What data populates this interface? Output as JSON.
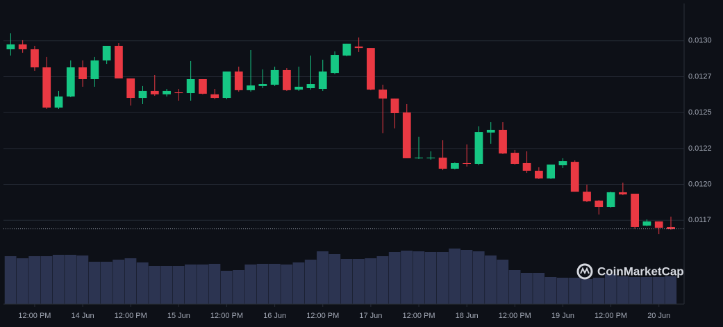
{
  "chart_data": {
    "type": "candlestick",
    "watermark": "CoinMarketCap",
    "x": [
      -18,
      -15,
      -12,
      -9,
      -6,
      -3,
      0,
      3,
      6,
      9,
      12,
      15,
      18,
      21,
      24,
      27,
      30,
      33,
      36,
      39,
      42,
      45,
      48,
      51,
      54,
      57,
      60,
      63,
      66,
      69,
      72,
      75,
      78,
      81,
      84,
      87,
      90,
      93,
      96,
      99,
      102,
      105,
      108,
      111,
      114,
      117,
      120,
      123,
      126,
      129,
      132,
      135,
      138,
      141,
      144,
      147
    ],
    "open": [
      0.012941,
      0.012975,
      0.012941,
      0.012815,
      0.012535,
      0.012612,
      0.012815,
      0.012733,
      0.012863,
      0.012965,
      0.012738,
      0.012602,
      0.012651,
      0.012627,
      0.012641,
      0.012636,
      0.012733,
      0.012627,
      0.012602,
      0.012786,
      0.012656,
      0.012685,
      0.012694,
      0.012796,
      0.01266,
      0.01267,
      0.012665,
      0.012776,
      0.012897,
      0.01296,
      0.01295,
      0.01266,
      0.012598,
      0.012501,
      0.012182,
      0.012182,
      0.012186,
      0.012109,
      0.012148,
      0.012143,
      0.012361,
      0.01238,
      0.01222,
      0.012148,
      0.012095,
      0.012041,
      0.012133,
      0.012157,
      0.011949,
      0.011887,
      0.011843,
      0.011945,
      0.011935,
      0.011713,
      0.011742,
      0.011703
    ],
    "high": [
      0.013052,
      0.013004,
      0.012965,
      0.012888,
      0.012651,
      0.012863,
      0.012863,
      0.012888,
      0.012965,
      0.012984,
      0.012738,
      0.012685,
      0.012762,
      0.012665,
      0.012665,
      0.012859,
      0.012733,
      0.012665,
      0.012786,
      0.01282,
      0.012936,
      0.012801,
      0.01282,
      0.01281,
      0.01282,
      0.012897,
      0.012868,
      0.012926,
      0.01298,
      0.013023,
      0.01295,
      0.012694,
      0.012598,
      0.012559,
      0.012332,
      0.01223,
      0.012307,
      0.012153,
      0.012278,
      0.012404,
      0.012433,
      0.012433,
      0.01224,
      0.01223,
      0.012119,
      0.012138,
      0.012182,
      0.012167,
      0.011998,
      0.011891,
      0.011949,
      0.012012,
      0.011935,
      0.011756,
      0.011742,
      0.011775
    ],
    "low": [
      0.012897,
      0.012917,
      0.012791,
      0.012525,
      0.012525,
      0.012607,
      0.01268,
      0.01268,
      0.012839,
      0.012738,
      0.012549,
      0.012559,
      0.012617,
      0.012612,
      0.012583,
      0.012583,
      0.012627,
      0.012593,
      0.012593,
      0.012646,
      0.012646,
      0.01267,
      0.012685,
      0.012651,
      0.012651,
      0.01266,
      0.012651,
      0.012767,
      0.012892,
      0.012922,
      0.012656,
      0.012356,
      0.01239,
      0.012182,
      0.012177,
      0.012172,
      0.012099,
      0.012104,
      0.012124,
      0.012133,
      0.012283,
      0.012211,
      0.012138,
      0.01208,
      0.012037,
      0.012037,
      0.012114,
      0.011949,
      0.011877,
      0.01179,
      0.011838,
      0.011925,
      0.011688,
      0.011708,
      0.011654,
      0.011684
    ],
    "close": [
      0.012975,
      0.012941,
      0.012815,
      0.012535,
      0.012612,
      0.012815,
      0.012733,
      0.012863,
      0.012965,
      0.012738,
      0.012602,
      0.012651,
      0.012627,
      0.012651,
      0.012636,
      0.012733,
      0.012631,
      0.012602,
      0.012786,
      0.012656,
      0.012689,
      0.012699,
      0.012796,
      0.012656,
      0.01268,
      0.012699,
      0.012786,
      0.012902,
      0.01298,
      0.01295,
      0.01266,
      0.012598,
      0.012496,
      0.012182,
      0.012186,
      0.012186,
      0.012109,
      0.012148,
      0.012143,
      0.012365,
      0.01238,
      0.012215,
      0.012143,
      0.012095,
      0.012041,
      0.012138,
      0.012162,
      0.011949,
      0.011882,
      0.011843,
      0.011945,
      0.01193,
      0.011703,
      0.011742,
      0.011698,
      0.011688
    ],
    "volume": [
      69,
      66,
      69,
      69,
      71,
      71,
      70,
      61,
      61,
      64,
      66,
      60,
      55,
      55,
      55,
      57,
      57,
      58,
      48,
      49,
      57,
      58,
      58,
      57,
      60,
      64,
      76,
      72,
      65,
      65,
      66,
      69,
      75,
      77,
      76,
      75,
      75,
      80,
      78,
      76,
      70,
      64,
      49,
      45,
      45,
      39,
      38,
      38,
      36,
      38,
      43,
      40,
      39,
      39,
      39,
      40
    ],
    "last_price": 0.01169,
    "xlim": [
      -19.8,
      150.3
    ],
    "ylim": [
      0.01164,
      0.01326
    ],
    "vlim": [
      0,
      100
    ],
    "xticks": [
      {
        "value": -12,
        "label": "12:00 PM"
      },
      {
        "value": 0,
        "label": "14 Jun"
      },
      {
        "value": 12,
        "label": "12:00 PM"
      },
      {
        "value": 24,
        "label": "15 Jun"
      },
      {
        "value": 36,
        "label": "12:00 PM"
      },
      {
        "value": 48,
        "label": "16 Jun"
      },
      {
        "value": 60,
        "label": "12:00 PM"
      },
      {
        "value": 72,
        "label": "17 Jun"
      },
      {
        "value": 84,
        "label": "12:00 PM"
      },
      {
        "value": 96,
        "label": "18 Jun"
      },
      {
        "value": 108,
        "label": "12:00 PM"
      },
      {
        "value": 120,
        "label": "19 Jun"
      },
      {
        "value": 132,
        "label": "12:00 PM"
      },
      {
        "value": 144,
        "label": "20 Jun"
      }
    ],
    "yticks": [
      {
        "value": 0.013,
        "label": "0.0130"
      },
      {
        "value": 0.01275,
        "label": "0.0127"
      },
      0.0125,
      {
        "value": 0.01225,
        "label": "0.0122"
      },
      {
        "value": 0.012,
        "label": "0.0120"
      },
      {
        "value": 0.01175,
        "label": "0.0117"
      }
    ],
    "grid": true,
    "up_color": "#16c784",
    "down_color": "#ea3943",
    "volume_color": "#2c3451"
  }
}
